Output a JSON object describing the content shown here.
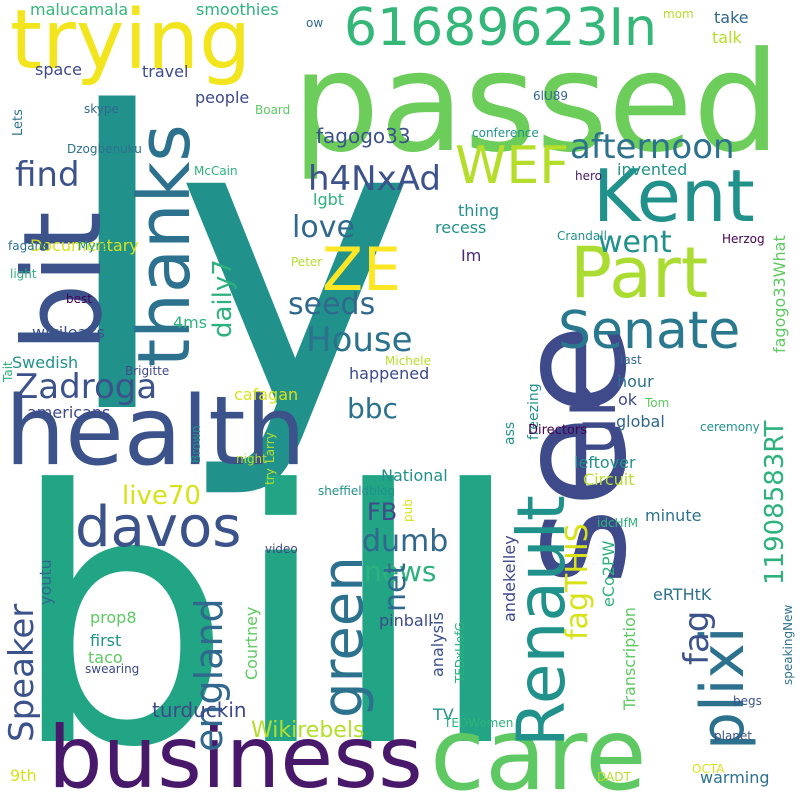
{
  "colors": {
    "background": "#ffffff",
    "palette": [
      "#440154",
      "#3b528b",
      "#21918c",
      "#2db27d",
      "#5ec962",
      "#aadc32",
      "#fde725"
    ]
  },
  "words": [
    {
      "text": "ly",
      "color": "#21918c"
    },
    {
      "text": "bill",
      "color": "#21a585"
    },
    {
      "text": "passed",
      "color": "#6ccd5a"
    },
    {
      "text": "see",
      "color": "#3e4a89"
    },
    {
      "text": "health",
      "color": "#3b528b"
    },
    {
      "text": "business",
      "color": "#48186a"
    },
    {
      "text": "care",
      "color": "#5ec962"
    },
    {
      "text": "bit",
      "color": "#3b528b"
    },
    {
      "text": "trying",
      "color": "#f2e51d"
    },
    {
      "text": "thanks",
      "color": "#2c728e"
    },
    {
      "text": "Kent",
      "color": "#21918c"
    },
    {
      "text": "Part",
      "color": "#aadc32"
    },
    {
      "text": "Renault",
      "color": "#21918c"
    },
    {
      "text": "green",
      "color": "#2c728e"
    },
    {
      "text": "davos",
      "color": "#3b528b"
    },
    {
      "text": "uk",
      "color": "#3e4a89"
    },
    {
      "text": "Senate",
      "color": "#2a788e"
    },
    {
      "text": "plixi",
      "color": "#2c728e"
    },
    {
      "text": "ZE",
      "color": "#fde725"
    },
    {
      "text": "WEF",
      "color": "#b5de2b"
    },
    {
      "text": "61689623In",
      "color": "#35b779"
    },
    {
      "text": "Zadroga",
      "color": "#3b528b"
    },
    {
      "text": "england",
      "color": "#31688e"
    },
    {
      "text": "afternoon",
      "color": "#2c728e"
    },
    {
      "text": "h4NxAd",
      "color": "#3b528b"
    },
    {
      "text": "House",
      "color": "#2c728e"
    },
    {
      "text": "Speaker",
      "color": "#3b528b"
    },
    {
      "text": "find",
      "color": "#3b528b"
    },
    {
      "text": "went",
      "color": "#21918c"
    },
    {
      "text": "love",
      "color": "#31688e"
    },
    {
      "text": "seeds",
      "color": "#31688e"
    },
    {
      "text": "dumb",
      "color": "#31688e"
    },
    {
      "text": "news",
      "color": "#2db27d"
    },
    {
      "text": "bbc",
      "color": "#2c728e"
    },
    {
      "text": "net",
      "color": "#31688e"
    },
    {
      "text": "fag",
      "color": "#3b528b"
    },
    {
      "text": "fagTHIS",
      "color": "#d8e219"
    },
    {
      "text": "11908583RT",
      "color": "#2db27d"
    },
    {
      "text": "live70",
      "color": "#d8e219"
    },
    {
      "text": "daily7",
      "color": "#2db27d"
    },
    {
      "text": "FB",
      "color": "#3e4a89"
    },
    {
      "text": "Wikirebels",
      "color": "#b5de2b"
    },
    {
      "text": "turduckin",
      "color": "#3e4a89"
    },
    {
      "text": "fagogo33",
      "color": "#3b528b"
    },
    {
      "text": "fagogo33What",
      "color": "#5ec962"
    },
    {
      "text": "malucamala",
      "color": "#35b779"
    },
    {
      "text": "smoothies",
      "color": "#2db27d"
    },
    {
      "text": "take",
      "color": "#31688e"
    },
    {
      "text": "talk",
      "color": "#b5de2b"
    },
    {
      "text": "space",
      "color": "#3e4a89"
    },
    {
      "text": "travel",
      "color": "#3e4a89"
    },
    {
      "text": "people",
      "color": "#3e4a89"
    },
    {
      "text": "invented",
      "color": "#21918c"
    },
    {
      "text": "lgbt",
      "color": "#2db27d"
    },
    {
      "text": "thing",
      "color": "#21918c"
    },
    {
      "text": "recess",
      "color": "#21918c"
    },
    {
      "text": "Documentary",
      "color": "#d8e219"
    },
    {
      "text": "Im",
      "color": "#482878"
    },
    {
      "text": "4ms",
      "color": "#2db27d"
    },
    {
      "text": "wikileaks",
      "color": "#3b528b"
    },
    {
      "text": "Swedish",
      "color": "#21918c"
    },
    {
      "text": "happened",
      "color": "#3e4a89"
    },
    {
      "text": "americans",
      "color": "#3e4a89"
    },
    {
      "text": "cafagan",
      "color": "#d8e219"
    },
    {
      "text": "hour",
      "color": "#2c728e"
    },
    {
      "text": "ok",
      "color": "#3e4a89"
    },
    {
      "text": "global",
      "color": "#31688e"
    },
    {
      "text": "National",
      "color": "#21918c"
    },
    {
      "text": "Circuit",
      "color": "#b5de2b"
    },
    {
      "text": "leftover",
      "color": "#21918c"
    },
    {
      "text": "minute",
      "color": "#2c728e"
    },
    {
      "text": "youtu",
      "color": "#31688e"
    },
    {
      "text": "pinball",
      "color": "#3e4a89"
    },
    {
      "text": "eRTHtK",
      "color": "#2c728e"
    },
    {
      "text": "prop8",
      "color": "#5ec962"
    },
    {
      "text": "first",
      "color": "#21918c"
    },
    {
      "text": "taco",
      "color": "#5ec962"
    },
    {
      "text": "Courtney",
      "color": "#5ec962"
    },
    {
      "text": "analysis",
      "color": "#3b528b"
    },
    {
      "text": "andekelley",
      "color": "#3e4a89"
    },
    {
      "text": "eCo2PW",
      "color": "#2db27d"
    },
    {
      "text": "Transcription",
      "color": "#5ec962"
    },
    {
      "text": "TV",
      "color": "#21918c"
    },
    {
      "text": "9th",
      "color": "#d8e219"
    },
    {
      "text": "warming",
      "color": "#2c728e"
    },
    {
      "text": "ass",
      "color": "#21918c"
    },
    {
      "text": "freezing",
      "color": "#21918c"
    },
    {
      "text": "Directors",
      "color": "#440154"
    },
    {
      "text": "Lets",
      "color": "#2c728e"
    },
    {
      "text": "skype",
      "color": "#31688e"
    },
    {
      "text": "Board",
      "color": "#5ec962"
    },
    {
      "text": "conference",
      "color": "#21918c"
    },
    {
      "text": "Dzogbenuku",
      "color": "#2c728e"
    },
    {
      "text": "McCain",
      "color": "#2db27d"
    },
    {
      "text": "hero",
      "color": "#48186a"
    },
    {
      "text": "Crandall",
      "color": "#21918c"
    },
    {
      "text": "Herzog",
      "color": "#440154"
    },
    {
      "text": "fagans",
      "color": "#2c728e"
    },
    {
      "text": "Myra",
      "color": "#21918c"
    },
    {
      "text": "light",
      "color": "#2db27d"
    },
    {
      "text": "Peter",
      "color": "#b5de2b"
    },
    {
      "text": "best",
      "color": "#440154"
    },
    {
      "text": "Michele",
      "color": "#b5de2b"
    },
    {
      "text": "last",
      "color": "#31688e"
    },
    {
      "text": "Tait",
      "color": "#2db27d"
    },
    {
      "text": "Brigitte",
      "color": "#3e4a89"
    },
    {
      "text": "Tom",
      "color": "#5ec962"
    },
    {
      "text": "ceremony",
      "color": "#21918c"
    },
    {
      "text": "Brown",
      "color": "#21918c"
    },
    {
      "text": "night",
      "color": "#b5de2b"
    },
    {
      "text": "try",
      "color": "#b5de2b"
    },
    {
      "text": "Larry",
      "color": "#b5de2b"
    },
    {
      "text": "sheffieldblog",
      "color": "#21918c"
    },
    {
      "text": "pub",
      "color": "#d8e219"
    },
    {
      "text": "idcHfM",
      "color": "#2db27d"
    },
    {
      "text": "video",
      "color": "#3e4a89"
    },
    {
      "text": "TEDxUofG",
      "color": "#2db27d"
    },
    {
      "text": "speakingNew",
      "color": "#2c728e"
    },
    {
      "text": "swearing",
      "color": "#3e4a89"
    },
    {
      "text": "begs",
      "color": "#3b528b"
    },
    {
      "text": "TEDWomen",
      "color": "#2db27d"
    },
    {
      "text": "planet",
      "color": "#3b528b"
    },
    {
      "text": "DADT",
      "color": "#b5de2b"
    },
    {
      "text": "OCTA",
      "color": "#d8e219"
    },
    {
      "text": "ow",
      "color": "#31688e"
    },
    {
      "text": "mom",
      "color": "#b5de2b"
    },
    {
      "text": "6lU89",
      "color": "#31688e"
    }
  ]
}
